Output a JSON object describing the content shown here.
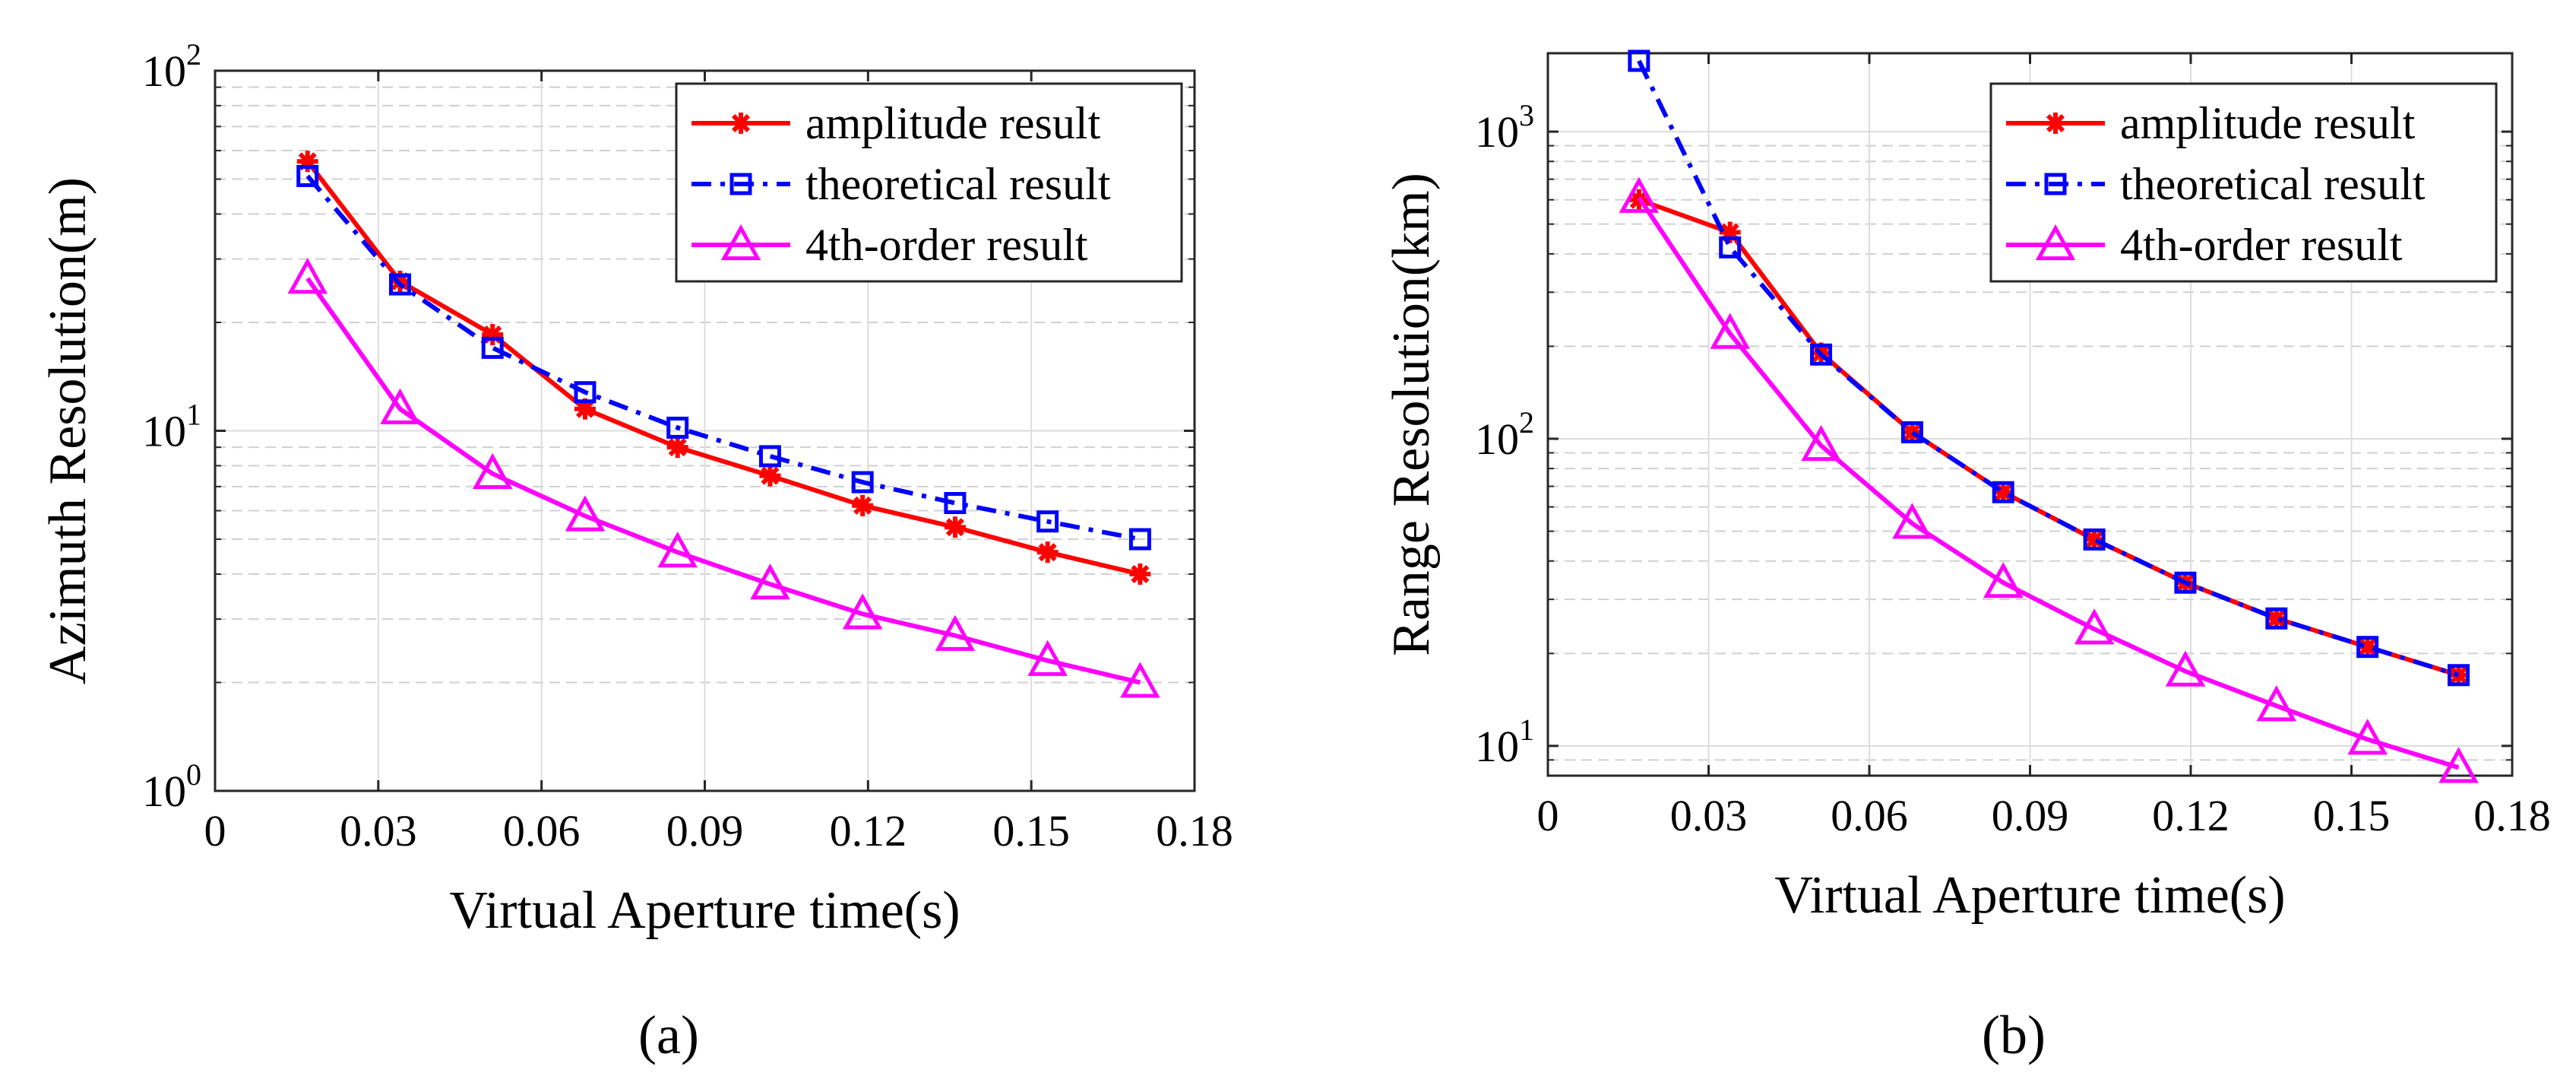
{
  "chart_data": [
    {
      "type": "line",
      "panel_label": "(a)",
      "xlabel": "Virtual Aperture time(s)",
      "ylabel": "Azimuth Resolution(m)",
      "x_scale": "linear",
      "y_scale": "log",
      "xlim": [
        0,
        0.18
      ],
      "ylim": [
        1,
        100
      ],
      "x_ticks": [
        0,
        0.03,
        0.06,
        0.09,
        0.12,
        0.15,
        0.18
      ],
      "x_tick_labels": [
        "0",
        "0.03",
        "0.06",
        "0.09",
        "0.12",
        "0.15",
        "0.18"
      ],
      "y_ticks": [
        1,
        10,
        100
      ],
      "y_tick_labels": [
        {
          "base": "10",
          "exp": "0"
        },
        {
          "base": "10",
          "exp": "1"
        },
        {
          "base": "10",
          "exp": "2"
        }
      ],
      "grid": true,
      "legend_position": "top-right",
      "x": [
        0.017,
        0.034,
        0.051,
        0.068,
        0.085,
        0.102,
        0.119,
        0.136,
        0.153,
        0.17
      ],
      "series": [
        {
          "name": "amplitude result",
          "color": "#ff0000",
          "line_style": "solid",
          "marker": "asterisk",
          "values": [
            56,
            26,
            18.5,
            11.5,
            9,
            7.5,
            6.2,
            5.4,
            4.6,
            4.0
          ]
        },
        {
          "name": "theoretical result",
          "color": "#0000ff",
          "line_style": "dashdot",
          "marker": "square",
          "values": [
            51,
            25.5,
            17,
            12.8,
            10.2,
            8.5,
            7.2,
            6.3,
            5.6,
            5.0
          ]
        },
        {
          "name": "4th-order result",
          "color": "#ff00ff",
          "line_style": "solid",
          "marker": "triangle",
          "values": [
            26.5,
            11.5,
            7.6,
            5.8,
            4.6,
            3.75,
            3.1,
            2.7,
            2.3,
            2.0
          ]
        }
      ]
    },
    {
      "type": "line",
      "panel_label": "(b)",
      "xlabel": "Virtual Aperture time(s)",
      "ylabel": "Range Resolution(km)",
      "x_scale": "linear",
      "y_scale": "log",
      "xlim": [
        0,
        0.18
      ],
      "ylim": [
        8,
        1800
      ],
      "x_ticks": [
        0,
        0.03,
        0.06,
        0.09,
        0.12,
        0.15,
        0.18
      ],
      "x_tick_labels": [
        "0",
        "0.03",
        "0.06",
        "0.09",
        "0.12",
        "0.15",
        "0.18"
      ],
      "y_ticks": [
        10,
        100,
        1000
      ],
      "y_tick_labels": [
        {
          "base": "10",
          "exp": "1"
        },
        {
          "base": "10",
          "exp": "2"
        },
        {
          "base": "10",
          "exp": "3"
        }
      ],
      "grid": true,
      "legend_position": "top-right",
      "x": [
        0.017,
        0.034,
        0.051,
        0.068,
        0.085,
        0.102,
        0.119,
        0.136,
        0.153,
        0.17
      ],
      "series": [
        {
          "name": "amplitude result",
          "color": "#ff0000",
          "line_style": "solid",
          "marker": "asterisk",
          "values": [
            600,
            470,
            190,
            105,
            67,
            47,
            34,
            26,
            21,
            17
          ]
        },
        {
          "name": "theoretical result",
          "color": "#0000ff",
          "line_style": "dashdot",
          "marker": "square",
          "values": [
            1700,
            420,
            188,
            105,
            67,
            47,
            34,
            26,
            21,
            17
          ]
        },
        {
          "name": "4th-order result",
          "color": "#ff00ff",
          "line_style": "solid",
          "marker": "triangle",
          "values": [
            610,
            220,
            95,
            53,
            34,
            24,
            17.5,
            13.5,
            10.5,
            8.5
          ]
        }
      ]
    }
  ]
}
